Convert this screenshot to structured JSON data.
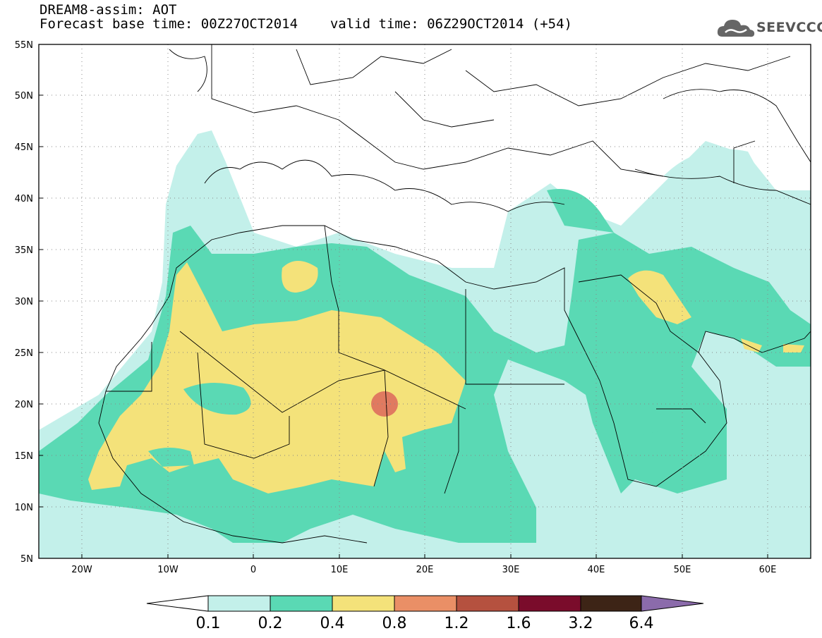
{
  "header": {
    "title_line1": "DREAM8-assim: AOT",
    "base_time_label": "Forecast base time: 00Z27OCT2014",
    "valid_time_label": "valid time: 06Z29OCT2014 (+54)",
    "logo_text": "SEEVCCC"
  },
  "axes": {
    "lat_labels": [
      "55N",
      "50N",
      "45N",
      "40N",
      "35N",
      "30N",
      "25N",
      "20N",
      "15N",
      "10N",
      "5N"
    ],
    "lon_labels": [
      "20W",
      "10W",
      "0",
      "10E",
      "20E",
      "30E",
      "40E",
      "50E",
      "60E"
    ]
  },
  "colorbar": {
    "labels": [
      "0.1",
      "0.2",
      "0.4",
      "0.8",
      "1.2",
      "1.6",
      "3.2",
      "6.4"
    ],
    "colors": [
      "#c3f0ea",
      "#5ad9b4",
      "#f4e27a",
      "#ea8f66",
      "#b5513f",
      "#7a0c2b",
      "#3d2416",
      "#8b6bab"
    ]
  },
  "colors": {
    "c1": "#c3f0ea",
    "c2": "#5ad9b4",
    "c3": "#f4e27a",
    "c4": "#ea8f66",
    "c5": "#e07a60"
  },
  "chart_data": {
    "type": "heatmap",
    "variable": "AOT",
    "xlim": [
      -25,
      65
    ],
    "ylim": [
      5,
      55
    ],
    "levels": [
      0.1,
      0.2,
      0.4,
      0.8,
      1.2,
      1.6,
      3.2,
      6.4
    ]
  }
}
